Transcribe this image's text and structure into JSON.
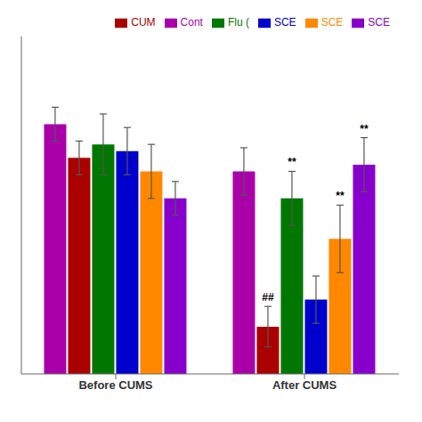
{
  "chart_data": {
    "type": "bar",
    "categories": [
      "Before CUMS",
      "After CUMS"
    ],
    "series": [
      {
        "name": "Cont",
        "color": "#AA00AA",
        "values": [
          87,
          80
        ],
        "errors": [
          2.5,
          3.5
        ]
      },
      {
        "name": "CUM",
        "color": "#AA0000",
        "values": [
          82,
          57
        ],
        "errors": [
          2.5,
          3.0
        ]
      },
      {
        "name": "Flu (",
        "color": "#007700",
        "values": [
          84,
          76
        ],
        "errors": [
          4.5,
          4.0
        ]
      },
      {
        "name": "SCE",
        "color": "#0000CC",
        "values": [
          83,
          61
        ],
        "errors": [
          3.5,
          3.5
        ]
      },
      {
        "name": "SCE",
        "color": "#FF8800",
        "values": [
          80,
          70
        ],
        "errors": [
          4.0,
          5.0
        ]
      },
      {
        "name": "SCE",
        "color": "#8800CC",
        "values": [
          76,
          81
        ],
        "errors": [
          2.5,
          4.0
        ]
      }
    ],
    "ylim": [
      50,
      100
    ],
    "yticks": [],
    "tick_labels": "x",
    "grid": false,
    "legend": "upper right",
    "annotations": [
      {
        "text": "##",
        "category": "After CUMS",
        "series": 1
      },
      {
        "text": "**",
        "category": "After CUMS",
        "series": 2
      },
      {
        "text": "**",
        "category": "After CUMS",
        "series": 4
      },
      {
        "text": "**",
        "category": "After CUMS",
        "series": 5
      }
    ]
  }
}
